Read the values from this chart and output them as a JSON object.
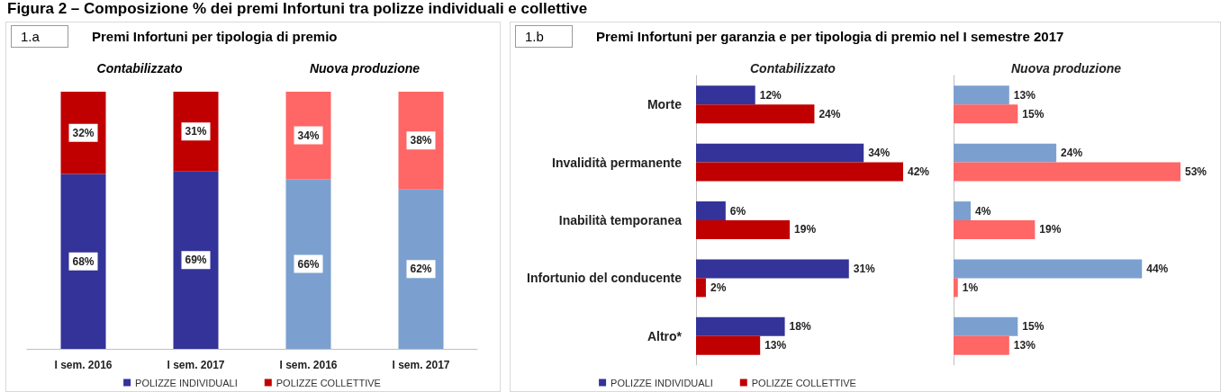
{
  "chart_data": [
    {
      "type": "other",
      "title": "Figura 2 – Composizione % dei premi Infortuni tra polizze individuali e collettive"
    },
    {
      "type": "bar",
      "title": "Premi Infortuni per tipologia di premio",
      "stacked": true,
      "legend": "bottom",
      "annotations": [
        "1.a",
        "Contabilizzato",
        "Nuova produzione"
      ],
      "categories": [
        "I sem. 2016",
        "I sem. 2017",
        "I sem. 2016",
        "I sem. 2017"
      ],
      "series": [
        {
          "name": "POLIZZE INDIVIDUALI",
          "color": "#333399",
          "colors": [
            "#333399",
            "#333399",
            "#7ba0d0",
            "#7ba0d0"
          ],
          "values": [
            68,
            69,
            66,
            62
          ],
          "value_labels": [
            "68%",
            "69%",
            "66%",
            "62%"
          ]
        },
        {
          "name": "POLIZZE COLLETTIVE",
          "color": "#c00000",
          "colors": [
            "#c00000",
            "#c00000",
            "#ff6666",
            "#ff6666"
          ],
          "values": [
            32,
            31,
            34,
            38
          ],
          "value_labels": [
            "32%",
            "31%",
            "34%",
            "38%"
          ]
        }
      ]
    },
    {
      "type": "bar",
      "orientation": "horizontal",
      "title": "Premi Infortuni per garanzia e per tipologia di premio nel I semestre 2017",
      "subtitle": "Contabilizzato",
      "legend": "bottom",
      "annotations": [
        "1.b"
      ],
      "categories": [
        "Morte",
        "Invalidità permanente",
        "Inabilità temporanea",
        "Infortunio del conducente",
        "Altro*"
      ],
      "series": [
        {
          "name": "POLIZZE INDIVIDUALI",
          "color": "#333399",
          "values": [
            12,
            34,
            6,
            31,
            18
          ],
          "value_labels": [
            "12%",
            "34%",
            "6%",
            "31%",
            "18%"
          ]
        },
        {
          "name": "POLIZZE COLLETTIVE",
          "color": "#c00000",
          "values": [
            24,
            42,
            19,
            2,
            13
          ],
          "value_labels": [
            "24%",
            "42%",
            "19%",
            "2%",
            "13%"
          ]
        }
      ]
    },
    {
      "type": "bar",
      "orientation": "horizontal",
      "title": "Nuova produzione",
      "categories": [
        null,
        null,
        null,
        null,
        null
      ],
      "series": [
        {
          "color": "#7ba0d0",
          "values": [
            13,
            24,
            4,
            44,
            15
          ],
          "value_labels": [
            "13%",
            "24%",
            "4%",
            "44%",
            "15%"
          ]
        },
        {
          "color": "#ff6666",
          "values": [
            15,
            53,
            19,
            1,
            13
          ],
          "value_labels": [
            "15%",
            "53%",
            "19%",
            "1%",
            "13%"
          ]
        }
      ]
    }
  ]
}
